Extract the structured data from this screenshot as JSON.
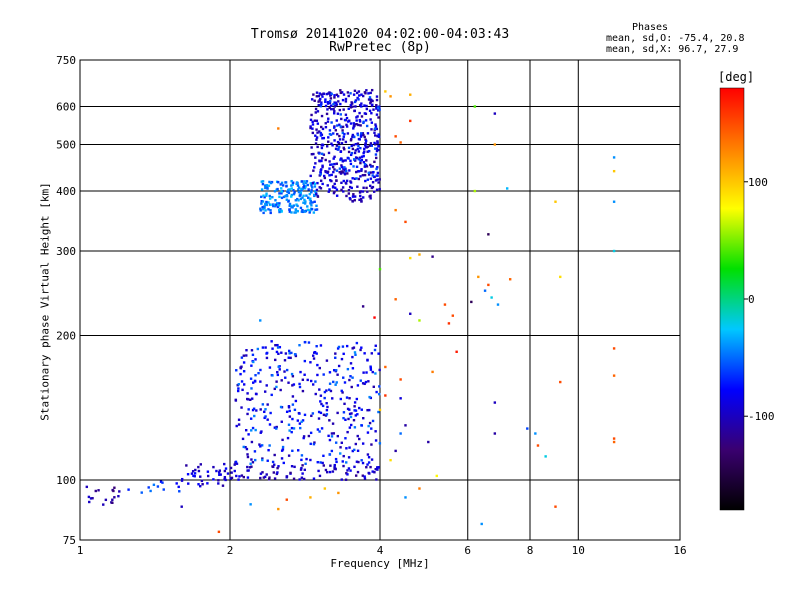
{
  "header": {
    "title_line1": "Tromsø 20141020 04:02:00-04:03:43",
    "title_line2": "RwPretec (8p)",
    "phases_heading": "Phases",
    "phases_o": "mean, sd,O: -75.4, 20.8",
    "phases_x": "mean, sd,X:  96.7, 27.9"
  },
  "colorbar": {
    "unit_label": "[deg]",
    "range": [
      -180,
      180
    ],
    "ticks": [
      "100",
      "0",
      "-100"
    ],
    "tick_values": [
      100,
      0,
      -100
    ],
    "colors": [
      "#000000",
      "#3a0070",
      "#0000ff",
      "#00c8ff",
      "#00e000",
      "#ffff00",
      "#ff8000",
      "#ff0000"
    ]
  },
  "chart_data": {
    "type": "scatter",
    "title": "Tromsø 20141020 04:02:00-04:03:43 RwPretec (8p)",
    "xlabel": "Frequency [MHz]",
    "ylabel": "Stationary phase Virtual Height [km]",
    "x_scale": "log",
    "y_scale": "log",
    "xlim": [
      1,
      16
    ],
    "ylim": [
      75,
      750
    ],
    "x_ticks": [
      1,
      2,
      4,
      6,
      8,
      10,
      16
    ],
    "x_tick_labels": [
      "1",
      "2",
      "4",
      "6",
      "8",
      "10",
      "16"
    ],
    "y_ticks": [
      75,
      100,
      200,
      300,
      400,
      500,
      600,
      750
    ],
    "y_tick_labels": [
      "75",
      "100",
      "200",
      "300",
      "400",
      "500",
      "600",
      "750"
    ],
    "grid": true,
    "color_value": "phase [deg]",
    "point_groups": [
      {
        "x": [
          1.0,
          1.2
        ],
        "y": [
          88,
          98
        ],
        "phase": -110,
        "count": 18
      },
      {
        "x": [
          1.25,
          1.6
        ],
        "y": [
          93,
          102
        ],
        "phase": -60,
        "count": 12
      },
      {
        "x": [
          1.6,
          2.05
        ],
        "y": [
          97,
          108
        ],
        "phase": -95,
        "count": 40
      },
      {
        "x": [
          2.0,
          4.0
        ],
        "y": [
          100,
          108
        ],
        "phase": -100,
        "count": 90
      },
      {
        "x": [
          2.05,
          4.0
        ],
        "y": [
          108,
          195
        ],
        "phase": -90,
        "count": 260
      },
      {
        "x": [
          2.05,
          4.0
        ],
        "y": [
          108,
          195
        ],
        "phase": -60,
        "count": 140
      },
      {
        "x": [
          2.3,
          3.0
        ],
        "y": [
          360,
          420
        ],
        "phase": -45,
        "count": 200
      },
      {
        "x": [
          2.9,
          4.0
        ],
        "y": [
          380,
          650
        ],
        "phase": -100,
        "count": 400
      },
      {
        "x": [
          3.0,
          4.0
        ],
        "y": [
          420,
          640
        ],
        "phase": -70,
        "count": 120
      }
    ],
    "points": [
      {
        "x": 2.5,
        "y": 540,
        "phase": 130
      },
      {
        "x": 4.1,
        "y": 645,
        "phase": 100
      },
      {
        "x": 4.2,
        "y": 630,
        "phase": 120
      },
      {
        "x": 4.6,
        "y": 635,
        "phase": 110
      },
      {
        "x": 4.3,
        "y": 520,
        "phase": 150
      },
      {
        "x": 4.4,
        "y": 505,
        "phase": 140
      },
      {
        "x": 4.6,
        "y": 560,
        "phase": 160
      },
      {
        "x": 6.2,
        "y": 600,
        "phase": 40
      },
      {
        "x": 6.8,
        "y": 580,
        "phase": -100
      },
      {
        "x": 6.8,
        "y": 500,
        "phase": 120
      },
      {
        "x": 11.8,
        "y": 470,
        "phase": -40
      },
      {
        "x": 11.8,
        "y": 440,
        "phase": 100
      },
      {
        "x": 11.8,
        "y": 380,
        "phase": -40
      },
      {
        "x": 11.8,
        "y": 300,
        "phase": -20
      },
      {
        "x": 9.0,
        "y": 380,
        "phase": 100
      },
      {
        "x": 7.2,
        "y": 405,
        "phase": -30
      },
      {
        "x": 6.2,
        "y": 400,
        "phase": 60
      },
      {
        "x": 4.3,
        "y": 365,
        "phase": 130
      },
      {
        "x": 4.5,
        "y": 345,
        "phase": 150
      },
      {
        "x": 6.6,
        "y": 325,
        "phase": -140
      },
      {
        "x": 4.0,
        "y": 275,
        "phase": 40
      },
      {
        "x": 4.6,
        "y": 290,
        "phase": 90
      },
      {
        "x": 4.8,
        "y": 295,
        "phase": 110
      },
      {
        "x": 5.1,
        "y": 292,
        "phase": -120
      },
      {
        "x": 6.3,
        "y": 265,
        "phase": 120
      },
      {
        "x": 6.6,
        "y": 255,
        "phase": 150
      },
      {
        "x": 7.3,
        "y": 262,
        "phase": 140
      },
      {
        "x": 9.2,
        "y": 265,
        "phase": 90
      },
      {
        "x": 6.5,
        "y": 248,
        "phase": -50
      },
      {
        "x": 6.7,
        "y": 240,
        "phase": -20
      },
      {
        "x": 6.9,
        "y": 232,
        "phase": -40
      },
      {
        "x": 3.7,
        "y": 230,
        "phase": -120
      },
      {
        "x": 4.3,
        "y": 238,
        "phase": 140
      },
      {
        "x": 5.4,
        "y": 232,
        "phase": 150
      },
      {
        "x": 6.1,
        "y": 235,
        "phase": -140
      },
      {
        "x": 3.9,
        "y": 218,
        "phase": 180
      },
      {
        "x": 4.8,
        "y": 215,
        "phase": 60
      },
      {
        "x": 5.6,
        "y": 220,
        "phase": 150
      },
      {
        "x": 4.6,
        "y": 222,
        "phase": -100
      },
      {
        "x": 5.5,
        "y": 212,
        "phase": 160
      },
      {
        "x": 2.3,
        "y": 215,
        "phase": -40
      },
      {
        "x": 5.7,
        "y": 185,
        "phase": 170
      },
      {
        "x": 9.2,
        "y": 160,
        "phase": 150
      },
      {
        "x": 11.8,
        "y": 188,
        "phase": 150
      },
      {
        "x": 11.8,
        "y": 165,
        "phase": 140
      },
      {
        "x": 4.1,
        "y": 172,
        "phase": 140
      },
      {
        "x": 5.1,
        "y": 168,
        "phase": 130
      },
      {
        "x": 4.4,
        "y": 162,
        "phase": 150
      },
      {
        "x": 4.1,
        "y": 150,
        "phase": 160
      },
      {
        "x": 4.4,
        "y": 148,
        "phase": -90
      },
      {
        "x": 6.8,
        "y": 145,
        "phase": -100
      },
      {
        "x": 4.0,
        "y": 140,
        "phase": 100
      },
      {
        "x": 4.5,
        "y": 130,
        "phase": -110
      },
      {
        "x": 4.4,
        "y": 125,
        "phase": -50
      },
      {
        "x": 5.0,
        "y": 120,
        "phase": -110
      },
      {
        "x": 6.8,
        "y": 125,
        "phase": -110
      },
      {
        "x": 7.9,
        "y": 128,
        "phase": -60
      },
      {
        "x": 8.2,
        "y": 125,
        "phase": -40
      },
      {
        "x": 8.3,
        "y": 118,
        "phase": 150
      },
      {
        "x": 8.6,
        "y": 112,
        "phase": -20
      },
      {
        "x": 11.8,
        "y": 122,
        "phase": 150
      },
      {
        "x": 11.8,
        "y": 120,
        "phase": 140
      },
      {
        "x": 4.3,
        "y": 115,
        "phase": -110
      },
      {
        "x": 4.2,
        "y": 110,
        "phase": 90
      },
      {
        "x": 5.2,
        "y": 102,
        "phase": 80
      },
      {
        "x": 4.5,
        "y": 92,
        "phase": -40
      },
      {
        "x": 4.8,
        "y": 96,
        "phase": 130
      },
      {
        "x": 9.0,
        "y": 88,
        "phase": 150
      },
      {
        "x": 6.4,
        "y": 81,
        "phase": -40
      },
      {
        "x": 1.9,
        "y": 78,
        "phase": 150
      },
      {
        "x": 2.5,
        "y": 87,
        "phase": 120
      },
      {
        "x": 2.9,
        "y": 92,
        "phase": 110
      },
      {
        "x": 3.1,
        "y": 96,
        "phase": 100
      },
      {
        "x": 3.3,
        "y": 94,
        "phase": 120
      },
      {
        "x": 2.6,
        "y": 91,
        "phase": 150
      },
      {
        "x": 1.6,
        "y": 88,
        "phase": -100
      },
      {
        "x": 2.2,
        "y": 89,
        "phase": -40
      }
    ]
  }
}
